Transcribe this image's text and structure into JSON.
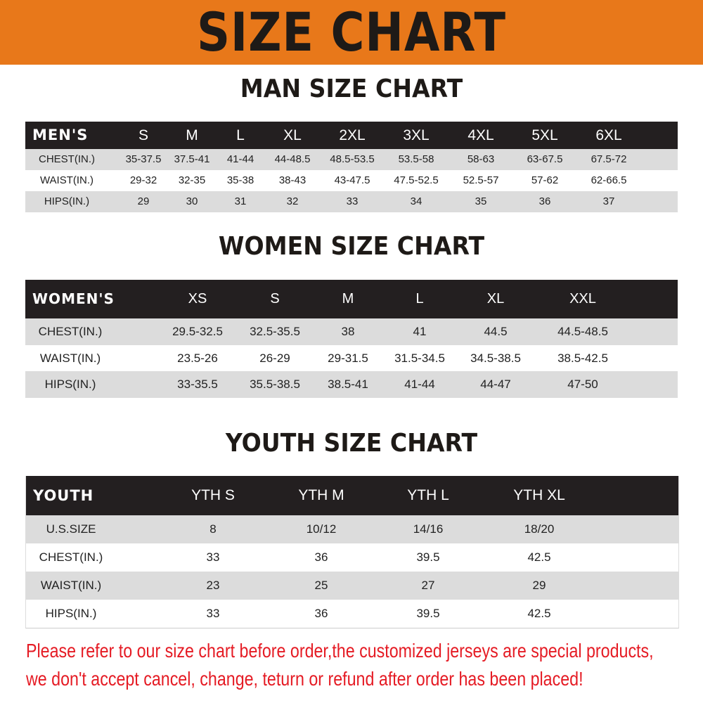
{
  "banner_title": "SIZE CHART",
  "colors": {
    "banner": "#E8781A",
    "header": "#231f20",
    "stripe": "#dcdcdc",
    "note": "#e51b24"
  },
  "men": {
    "title": "MAN SIZE CHART",
    "header": [
      "MEN'S",
      "S",
      "M",
      "L",
      "XL",
      "2XL",
      "3XL",
      "4XL",
      "5XL",
      "6XL"
    ],
    "rows": [
      [
        "CHEST(IN.)",
        "35-37.5",
        "37.5-41",
        "41-44",
        "44-48.5",
        "48.5-53.5",
        "53.5-58",
        "58-63",
        "63-67.5",
        "67.5-72"
      ],
      [
        "WAIST(IN.)",
        "29-32",
        "32-35",
        "35-38",
        "38-43",
        "43-47.5",
        "47.5-52.5",
        "52.5-57",
        "57-62",
        "62-66.5"
      ],
      [
        "HIPS(IN.)",
        "29",
        "30",
        "31",
        "32",
        "33",
        "34",
        "35",
        "36",
        "37"
      ]
    ]
  },
  "women": {
    "title": "WOMEN SIZE CHART",
    "header": [
      "WOMEN'S",
      "XS",
      "S",
      "M",
      "L",
      "XL",
      "XXL"
    ],
    "rows": [
      [
        "CHEST(IN.)",
        "29.5-32.5",
        "32.5-35.5",
        "38",
        "41",
        "44.5",
        "44.5-48.5"
      ],
      [
        "WAIST(IN.)",
        "23.5-26",
        "26-29",
        "29-31.5",
        "31.5-34.5",
        "34.5-38.5",
        "38.5-42.5"
      ],
      [
        "HIPS(IN.)",
        "33-35.5",
        "35.5-38.5",
        "38.5-41",
        "41-44",
        "44-47",
        "47-50"
      ]
    ]
  },
  "youth": {
    "title": "YOUTH SIZE CHART",
    "header": [
      "YOUTH",
      "YTH S",
      "YTH M",
      "YTH L",
      "YTH XL"
    ],
    "rows": [
      [
        "U.S.SIZE",
        "8",
        "10/12",
        "14/16",
        "18/20"
      ],
      [
        "CHEST(IN.)",
        "33",
        "36",
        "39.5",
        "42.5"
      ],
      [
        "WAIST(IN.)",
        "23",
        "25",
        "27",
        "29"
      ],
      [
        "HIPS(IN.)",
        "33",
        "36",
        "39.5",
        "42.5"
      ]
    ]
  },
  "note": {
    "line1": "Please refer to our size chart before order,the customized jerseys are special products,",
    "line2": "we don't accept cancel, change, teturn or refund after order has been placed!"
  }
}
